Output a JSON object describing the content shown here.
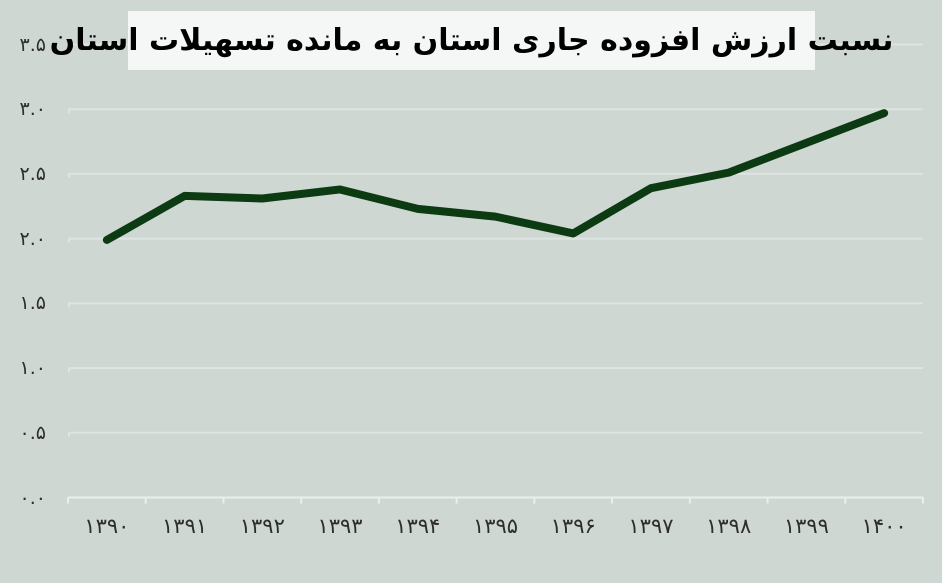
{
  "chart_data": {
    "type": "line",
    "title": "نسبت ارزش افزوده جاری استان به مانده تسهیلات استان",
    "categories": [
      "۱۳۹۰",
      "۱۳۹۱",
      "۱۳۹۲",
      "۱۳۹۳",
      "۱۳۹۴",
      "۱۳۹۵",
      "۱۳۹۶",
      "۱۳۹۷",
      "۱۳۹۸",
      "۱۳۹۹",
      "۱۴۰۰"
    ],
    "values": [
      1.99,
      2.33,
      2.31,
      2.38,
      2.23,
      2.17,
      2.04,
      2.39,
      2.51,
      2.74,
      2.97
    ],
    "xlabel": "",
    "ylabel": "",
    "ylim": [
      0,
      3.5
    ],
    "ytick_values": [
      0,
      0.5,
      1,
      1.5,
      2,
      2.5,
      3,
      3.5
    ],
    "ytick_labels": [
      "۰.۰",
      "۰.۵",
      "۱.۰",
      "۱.۵",
      "۲.۰",
      "۲.۵",
      "۳.۰",
      "۳.۵"
    ],
    "grid": "horizontal",
    "legend": "none",
    "colors": {
      "line": "#0c3a12",
      "background": "#cfd7d3",
      "gridline": "#dde4e1",
      "axis": "#e9efec",
      "title_background": "#f4f7f5",
      "title_text": "#000000",
      "tick_label": "#2d2d2d"
    }
  }
}
